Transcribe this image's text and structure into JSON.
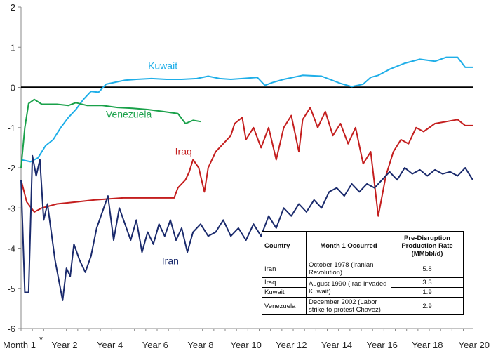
{
  "chart_data": {
    "type": "line",
    "title": "",
    "xlabel": "",
    "ylabel": "",
    "ylim": [
      -6,
      2
    ],
    "yticks": [
      2,
      1,
      0,
      -1,
      -2,
      -3,
      -4,
      -5,
      -6
    ],
    "x_categories": [
      "Month 1",
      "Year 2",
      "Year 4",
      "Year 6",
      "Year 8",
      "Year 10",
      "Year 12",
      "Year 14",
      "Year 16",
      "Year 18",
      "Year 20"
    ],
    "x_footnote_marker": "*",
    "xlim": [
      1,
      240
    ],
    "grid": false,
    "zero_line": true,
    "series": [
      {
        "name": "Kuwait",
        "color": "#1eaee8",
        "points": [
          [
            1,
            -1.8
          ],
          [
            6,
            -1.85
          ],
          [
            10,
            -1.75
          ],
          [
            14,
            -1.45
          ],
          [
            18,
            -1.3
          ],
          [
            22,
            -1.0
          ],
          [
            26,
            -0.75
          ],
          [
            30,
            -0.55
          ],
          [
            34,
            -0.3
          ],
          [
            38,
            -0.1
          ],
          [
            42,
            -0.12
          ],
          [
            46,
            0.08
          ],
          [
            50,
            0.12
          ],
          [
            56,
            0.18
          ],
          [
            62,
            0.2
          ],
          [
            70,
            0.22
          ],
          [
            78,
            0.2
          ],
          [
            86,
            0.2
          ],
          [
            94,
            0.22
          ],
          [
            100,
            0.28
          ],
          [
            106,
            0.22
          ],
          [
            112,
            0.2
          ],
          [
            118,
            0.22
          ],
          [
            126,
            0.25
          ],
          [
            130,
            0.05
          ],
          [
            134,
            0.12
          ],
          [
            140,
            0.2
          ],
          [
            150,
            0.3
          ],
          [
            160,
            0.28
          ],
          [
            170,
            0.1
          ],
          [
            176,
            0.02
          ],
          [
            182,
            0.08
          ],
          [
            186,
            0.25
          ],
          [
            190,
            0.3
          ],
          [
            196,
            0.45
          ],
          [
            204,
            0.6
          ],
          [
            212,
            0.7
          ],
          [
            220,
            0.65
          ],
          [
            226,
            0.75
          ],
          [
            232,
            0.75
          ],
          [
            236,
            0.5
          ],
          [
            240,
            0.5
          ]
        ]
      },
      {
        "name": "Venezuela",
        "color": "#1aa14a",
        "points": [
          [
            1,
            -2.0
          ],
          [
            3,
            -1.0
          ],
          [
            5,
            -0.4
          ],
          [
            8,
            -0.3
          ],
          [
            12,
            -0.42
          ],
          [
            20,
            -0.42
          ],
          [
            26,
            -0.45
          ],
          [
            30,
            -0.38
          ],
          [
            36,
            -0.45
          ],
          [
            44,
            -0.45
          ],
          [
            52,
            -0.5
          ],
          [
            60,
            -0.52
          ],
          [
            68,
            -0.55
          ],
          [
            76,
            -0.6
          ],
          [
            84,
            -0.65
          ],
          [
            88,
            -0.9
          ],
          [
            92,
            -0.82
          ],
          [
            96,
            -0.85
          ]
        ]
      },
      {
        "name": "Iraq",
        "color": "#c41e1e",
        "points": [
          [
            1,
            -2.3
          ],
          [
            4,
            -2.85
          ],
          [
            8,
            -3.1
          ],
          [
            12,
            -3.0
          ],
          [
            20,
            -2.9
          ],
          [
            30,
            -2.85
          ],
          [
            40,
            -2.8
          ],
          [
            55,
            -2.75
          ],
          [
            70,
            -2.75
          ],
          [
            82,
            -2.75
          ],
          [
            84,
            -2.5
          ],
          [
            88,
            -2.3
          ],
          [
            90,
            -2.1
          ],
          [
            92,
            -1.8
          ],
          [
            95,
            -2.0
          ],
          [
            98,
            -2.6
          ],
          [
            100,
            -2.0
          ],
          [
            104,
            -1.6
          ],
          [
            108,
            -1.4
          ],
          [
            112,
            -1.2
          ],
          [
            114,
            -0.9
          ],
          [
            118,
            -0.75
          ],
          [
            120,
            -1.3
          ],
          [
            124,
            -1.0
          ],
          [
            128,
            -1.5
          ],
          [
            132,
            -1.0
          ],
          [
            136,
            -1.8
          ],
          [
            140,
            -1.0
          ],
          [
            144,
            -0.7
          ],
          [
            148,
            -1.6
          ],
          [
            150,
            -0.8
          ],
          [
            154,
            -0.5
          ],
          [
            158,
            -1.0
          ],
          [
            162,
            -0.6
          ],
          [
            166,
            -1.2
          ],
          [
            170,
            -0.9
          ],
          [
            174,
            -1.4
          ],
          [
            178,
            -1.0
          ],
          [
            182,
            -1.9
          ],
          [
            186,
            -1.6
          ],
          [
            190,
            -3.2
          ],
          [
            192,
            -2.7
          ],
          [
            194,
            -2.2
          ],
          [
            198,
            -1.6
          ],
          [
            202,
            -1.3
          ],
          [
            206,
            -1.4
          ],
          [
            210,
            -1.0
          ],
          [
            214,
            -1.1
          ],
          [
            220,
            -0.9
          ],
          [
            226,
            -0.85
          ],
          [
            232,
            -0.8
          ],
          [
            236,
            -0.95
          ],
          [
            240,
            -0.95
          ]
        ]
      },
      {
        "name": "Iran",
        "color": "#1a2a6c",
        "points": [
          [
            1,
            -2.3
          ],
          [
            3,
            -5.1
          ],
          [
            5,
            -5.1
          ],
          [
            7,
            -1.7
          ],
          [
            9,
            -2.2
          ],
          [
            11,
            -1.8
          ],
          [
            13,
            -3.3
          ],
          [
            15,
            -2.9
          ],
          [
            17,
            -3.6
          ],
          [
            19,
            -4.3
          ],
          [
            21,
            -4.8
          ],
          [
            23,
            -5.3
          ],
          [
            25,
            -4.5
          ],
          [
            27,
            -4.7
          ],
          [
            29,
            -3.9
          ],
          [
            32,
            -4.3
          ],
          [
            35,
            -4.6
          ],
          [
            38,
            -4.2
          ],
          [
            41,
            -3.5
          ],
          [
            44,
            -3.1
          ],
          [
            47,
            -2.7
          ],
          [
            50,
            -3.8
          ],
          [
            53,
            -3.0
          ],
          [
            56,
            -3.4
          ],
          [
            59,
            -3.8
          ],
          [
            62,
            -3.3
          ],
          [
            65,
            -4.1
          ],
          [
            68,
            -3.6
          ],
          [
            71,
            -3.9
          ],
          [
            74,
            -3.4
          ],
          [
            77,
            -3.7
          ],
          [
            80,
            -3.3
          ],
          [
            83,
            -3.8
          ],
          [
            86,
            -3.5
          ],
          [
            89,
            -4.1
          ],
          [
            92,
            -3.6
          ],
          [
            96,
            -3.4
          ],
          [
            100,
            -3.7
          ],
          [
            104,
            -3.6
          ],
          [
            108,
            -3.3
          ],
          [
            112,
            -3.7
          ],
          [
            116,
            -3.5
          ],
          [
            120,
            -3.8
          ],
          [
            124,
            -3.4
          ],
          [
            128,
            -3.7
          ],
          [
            132,
            -3.2
          ],
          [
            136,
            -3.5
          ],
          [
            140,
            -3.0
          ],
          [
            144,
            -3.2
          ],
          [
            148,
            -2.9
          ],
          [
            152,
            -3.1
          ],
          [
            156,
            -2.8
          ],
          [
            160,
            -3.0
          ],
          [
            164,
            -2.6
          ],
          [
            168,
            -2.5
          ],
          [
            172,
            -2.7
          ],
          [
            176,
            -2.4
          ],
          [
            180,
            -2.6
          ],
          [
            184,
            -2.4
          ],
          [
            188,
            -2.5
          ],
          [
            192,
            -2.3
          ],
          [
            196,
            -2.1
          ],
          [
            200,
            -2.3
          ],
          [
            204,
            -2.0
          ],
          [
            208,
            -2.15
          ],
          [
            212,
            -2.05
          ],
          [
            216,
            -2.2
          ],
          [
            220,
            -2.05
          ],
          [
            224,
            -2.15
          ],
          [
            228,
            -2.1
          ],
          [
            232,
            -2.2
          ],
          [
            236,
            -2.0
          ],
          [
            240,
            -2.3
          ]
        ]
      }
    ],
    "series_labels": {
      "kuwait": "Kuwait",
      "venezuela": "Venezuela",
      "iraq": "Iraq",
      "iran": "Iran"
    }
  },
  "table": {
    "headers": {
      "country": "Country",
      "month1": "Month 1 Occurred",
      "rate": "Pre-Disruption Production Rate (MMbbl/d)"
    },
    "rows": [
      {
        "country": "Iran",
        "month1": "October 1978 (Iranian Revolution)",
        "rate": "5.8"
      },
      {
        "country": "Iraq",
        "month1": "August 1990 (Iraq invaded Kuwait)",
        "rate": "3.3"
      },
      {
        "country": "Kuwait",
        "month1": "",
        "rate": "1.9"
      },
      {
        "country": "Venezuela",
        "month1": "December 2002 (Labor strike to protest Chavez)",
        "rate": "2.9"
      }
    ]
  }
}
